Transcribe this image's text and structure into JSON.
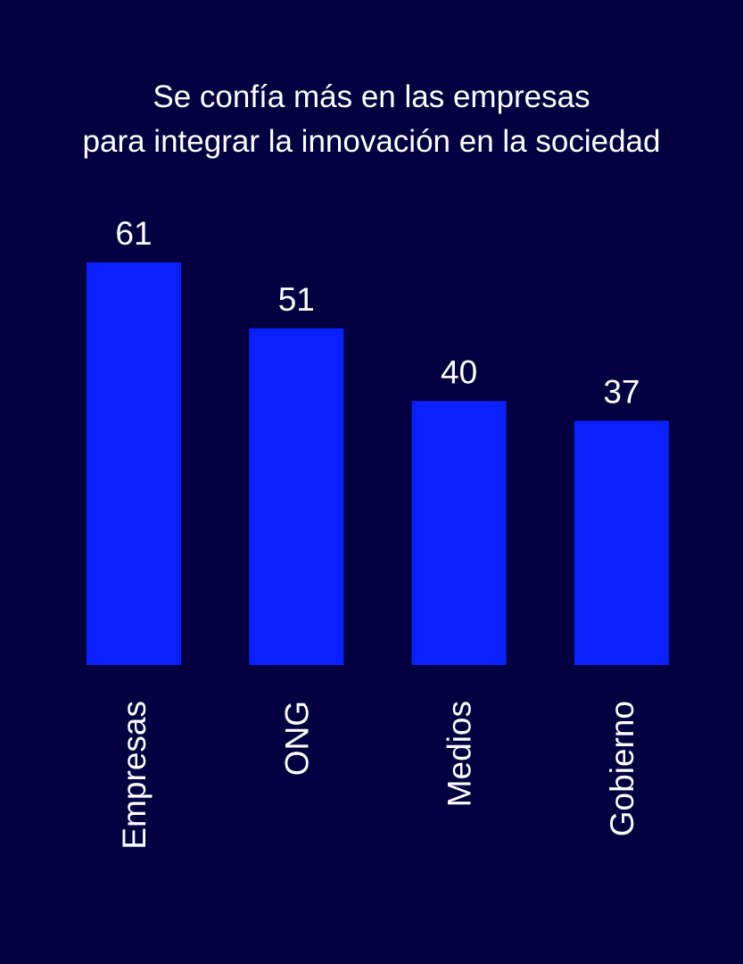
{
  "colors": {
    "background": "#020041",
    "bar": "#0a21ff",
    "text": "#ffffff"
  },
  "chart_data": {
    "type": "bar",
    "title_lines": [
      "Se confía más en las empresas",
      "para integrar la innovación en la sociedad"
    ],
    "categories": [
      "Empresas",
      "ONG",
      "Medios",
      "Gobierno"
    ],
    "values": [
      61,
      51,
      40,
      37
    ],
    "data_labels": [
      "61",
      "51",
      "40",
      "37"
    ],
    "xlabel": "",
    "ylabel": "",
    "ylim": [
      0,
      61
    ],
    "grid": false,
    "legend": "none",
    "category_label_orientation": "vertical"
  }
}
